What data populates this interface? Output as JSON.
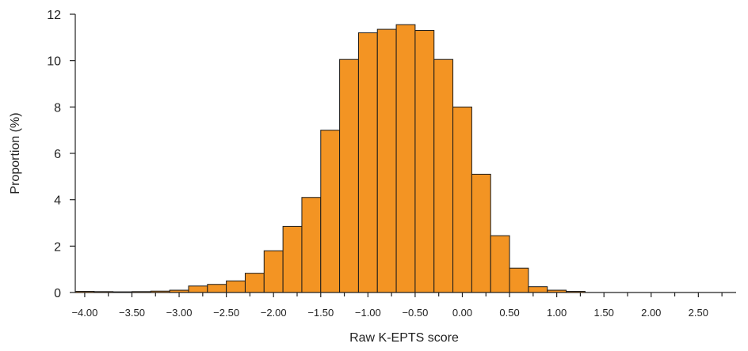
{
  "chart_data": {
    "type": "bar",
    "title": "",
    "xlabel": "Raw K-EPTS score",
    "ylabel": "Proportion (%)",
    "bin_width": 0.2,
    "x_start": -4.1,
    "xlim": [
      -4.1,
      2.9
    ],
    "ylim": [
      0,
      12
    ],
    "yticks": [
      0,
      2,
      4,
      6,
      8,
      10,
      12
    ],
    "xticks": [
      -4.0,
      -3.5,
      -3.0,
      -2.5,
      -2.0,
      -1.5,
      -1.0,
      -0.5,
      0.0,
      0.5,
      1.0,
      1.5,
      2.0,
      2.5
    ],
    "xtick_labels": [
      "−4.00",
      "−3.50",
      "−3.00",
      "−2.50",
      "−2.00",
      "−1.50",
      "−1.00",
      "−0.50",
      "0.00",
      "0.50",
      "1.00",
      "1.50",
      "2.00",
      "2.50"
    ],
    "values": [
      0.05,
      0.04,
      0.03,
      0.04,
      0.06,
      0.1,
      0.28,
      0.35,
      0.5,
      0.83,
      1.8,
      2.85,
      4.1,
      7.0,
      10.05,
      11.2,
      11.35,
      11.55,
      11.3,
      10.05,
      8.0,
      5.1,
      2.45,
      1.05,
      0.25,
      0.1,
      0.05
    ],
    "bar_color": "#F39423",
    "bar_edge_color": "#1a1a1a",
    "grid": false,
    "legend": "none"
  }
}
